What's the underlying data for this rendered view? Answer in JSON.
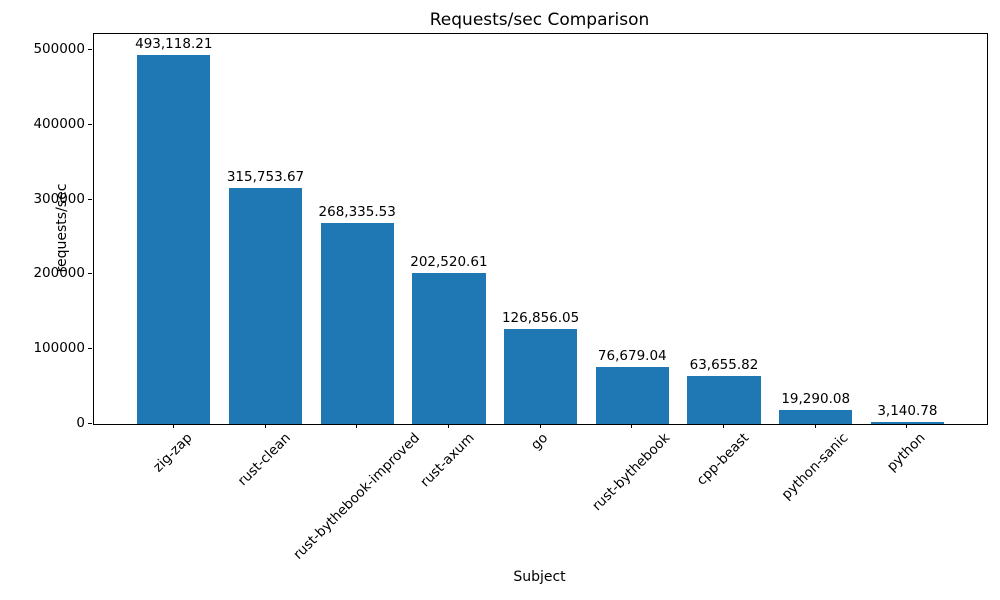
{
  "figure": {
    "title": "Requests/sec Comparison",
    "xlabel": "Subject",
    "ylabel": "requests/sec"
  },
  "chart_data": {
    "type": "bar",
    "title": "Requests/sec Comparison",
    "xlabel": "Subject",
    "ylabel": "requests/sec",
    "categories": [
      "zig-zap",
      "rust-clean",
      "rust-bythebook-improved",
      "rust-axum",
      "go",
      "rust-bythebook",
      "cpp-beast",
      "python-sanic",
      "python"
    ],
    "values": [
      493118.21,
      315753.67,
      268335.53,
      202520.61,
      126856.05,
      76679.04,
      63655.82,
      19290.08,
      3140.78
    ],
    "value_labels": [
      "493,118.21",
      "315,753.67",
      "268,335.53",
      "202,520.61",
      "126,856.05",
      "76,679.04",
      "63,655.82",
      "19,290.08",
      "3,140.78"
    ],
    "yticks": [
      0,
      100000,
      200000,
      300000,
      400000,
      500000
    ],
    "ytick_labels": [
      "0",
      "100000",
      "200000",
      "300000",
      "400000",
      "500000"
    ],
    "ylim": [
      0,
      521390
    ],
    "bar_color": "#1f77b4",
    "x_tick_rotation": 45,
    "grid": false,
    "legend": null
  }
}
